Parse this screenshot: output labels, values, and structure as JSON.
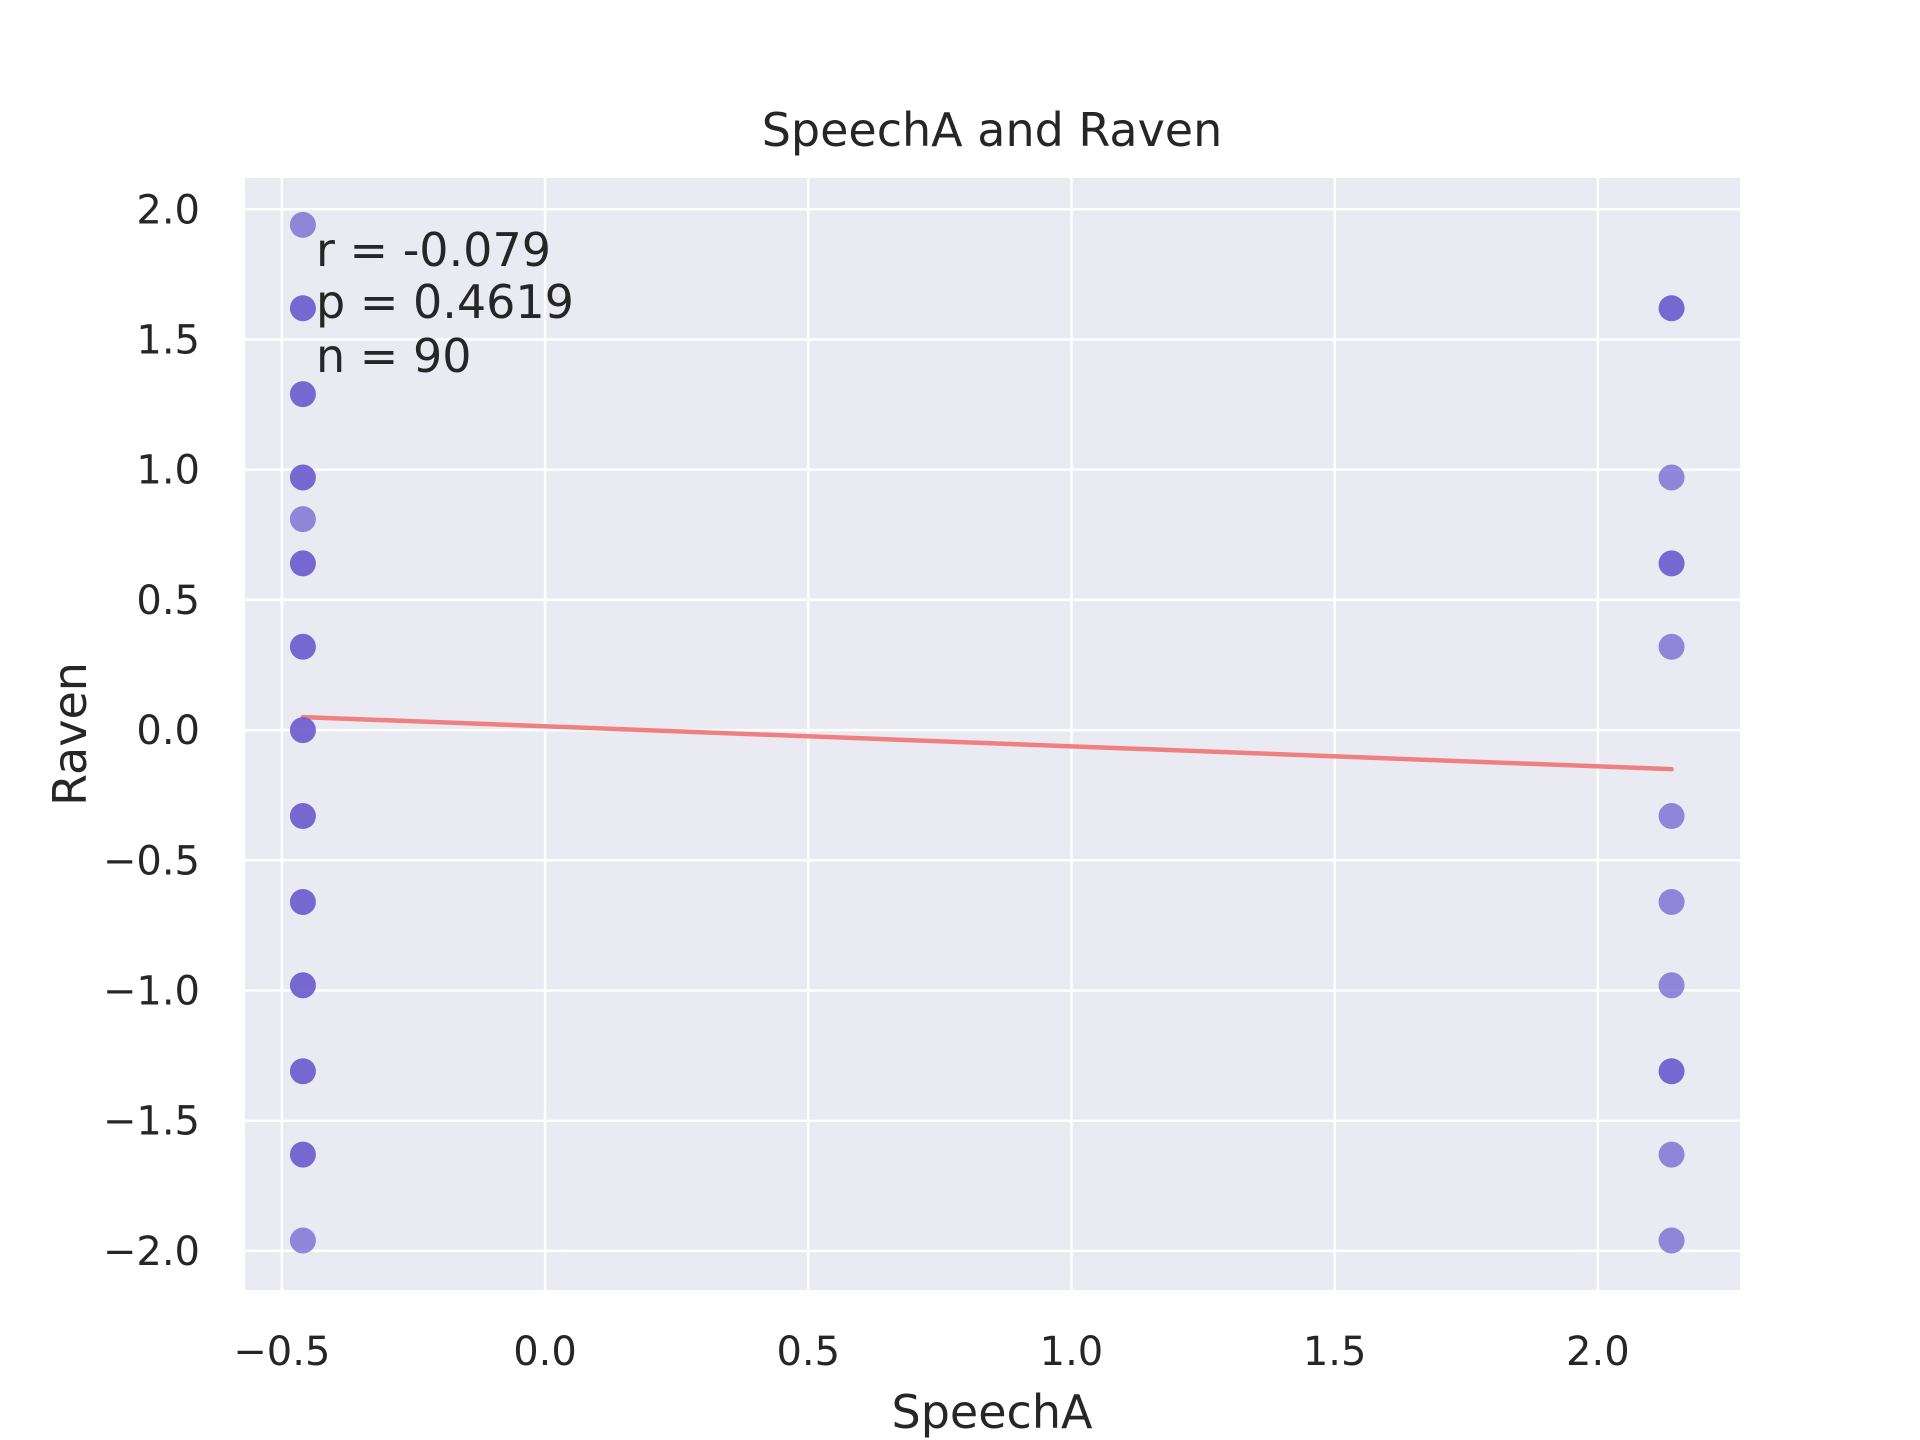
{
  "chart_data": {
    "type": "scatter",
    "title": "SpeechA and Raven",
    "xlabel": "SpeechA",
    "ylabel": "Raven",
    "xlim": [
      -0.57,
      2.27
    ],
    "ylim": [
      -2.15,
      2.12
    ],
    "xticks": [
      -0.5,
      0.0,
      0.5,
      1.0,
      1.5,
      2.0
    ],
    "yticks": [
      -2.0,
      -1.5,
      -1.0,
      -0.5,
      0.0,
      0.5,
      1.0,
      1.5,
      2.0
    ],
    "xtick_labels": [
      "−0.5",
      "0.0",
      "0.5",
      "1.0",
      "1.5",
      "2.0"
    ],
    "ytick_labels": [
      "−2.0",
      "−1.5",
      "−1.0",
      "−0.5",
      "0.0",
      "0.5",
      "1.0",
      "1.5",
      "2.0"
    ],
    "grid": true,
    "background_color": "#eaeaf2",
    "grid_color": "#ffffff",
    "point_color": "#6a5acd",
    "line_color": "#f08080",
    "annotations": [
      "r = -0.079",
      "p = 0.4619",
      "n = 90"
    ],
    "series": [
      {
        "x": [
          -0.46,
          -0.46,
          -0.46,
          -0.46,
          -0.46,
          -0.46,
          -0.46,
          -0.46,
          -0.46,
          -0.46,
          -0.46,
          -0.46,
          -0.46,
          -0.46,
          2.14,
          2.14,
          2.14,
          2.14,
          2.14,
          2.14,
          2.14,
          2.14,
          2.14,
          2.14
        ],
        "y": [
          1.94,
          1.62,
          1.29,
          0.97,
          0.81,
          0.64,
          0.32,
          0.0,
          -0.33,
          -0.66,
          -0.98,
          -1.31,
          -1.63,
          -1.96,
          1.62,
          0.97,
          0.64,
          0.32,
          -0.33,
          -0.66,
          -0.98,
          -1.31,
          -1.63,
          -1.96
        ],
        "opacity": [
          0.7,
          0.9,
          0.9,
          0.9,
          0.7,
          0.9,
          0.9,
          0.9,
          0.9,
          0.9,
          0.9,
          0.9,
          0.9,
          0.7,
          0.9,
          0.7,
          0.9,
          0.7,
          0.7,
          0.7,
          0.7,
          0.9,
          0.7,
          0.7
        ]
      }
    ],
    "regression_line": {
      "x": [
        -0.46,
        2.14
      ],
      "y": [
        0.05,
        -0.15
      ]
    }
  }
}
